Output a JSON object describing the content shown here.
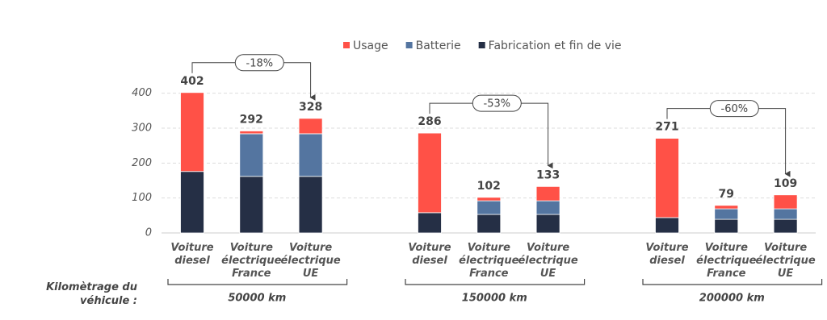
{
  "chart_data": {
    "type": "bar",
    "stacked": true,
    "grid": true,
    "ylim": [
      0,
      420
    ],
    "yticks": [
      0,
      100,
      200,
      300,
      400
    ],
    "x_label": "Kilomètrage du véhicule :",
    "groups": [
      {
        "label": "50000 km",
        "annotation": "-18%"
      },
      {
        "label": "150000 km",
        "annotation": "-53%"
      },
      {
        "label": "200000 km",
        "annotation": "-60%"
      }
    ],
    "categories": [
      "Voiture diesel",
      "Voiture électrique France",
      "Voiture électrique UE",
      "Voiture diesel",
      "Voiture électrique France",
      "Voiture électrique UE",
      "Voiture diesel",
      "Voiture électrique France",
      "Voiture électrique UE"
    ],
    "series": [
      {
        "name": "Fabrication et fin de vie",
        "color": "#252f45",
        "values": [
          176,
          162,
          162,
          58,
          53,
          53,
          44,
          39,
          39
        ]
      },
      {
        "name": "Batterie",
        "color": "#5475a0",
        "values": [
          0,
          122,
          122,
          0,
          39,
          39,
          0,
          30,
          30
        ]
      },
      {
        "name": "Usage",
        "color": "#ff5147",
        "values": [
          226,
          8,
          44,
          228,
          10,
          41,
          227,
          10,
          40
        ]
      }
    ],
    "totals": [
      402,
      292,
      328,
      286,
      102,
      133,
      271,
      79,
      109
    ],
    "legend_order": [
      2,
      1,
      0
    ]
  }
}
